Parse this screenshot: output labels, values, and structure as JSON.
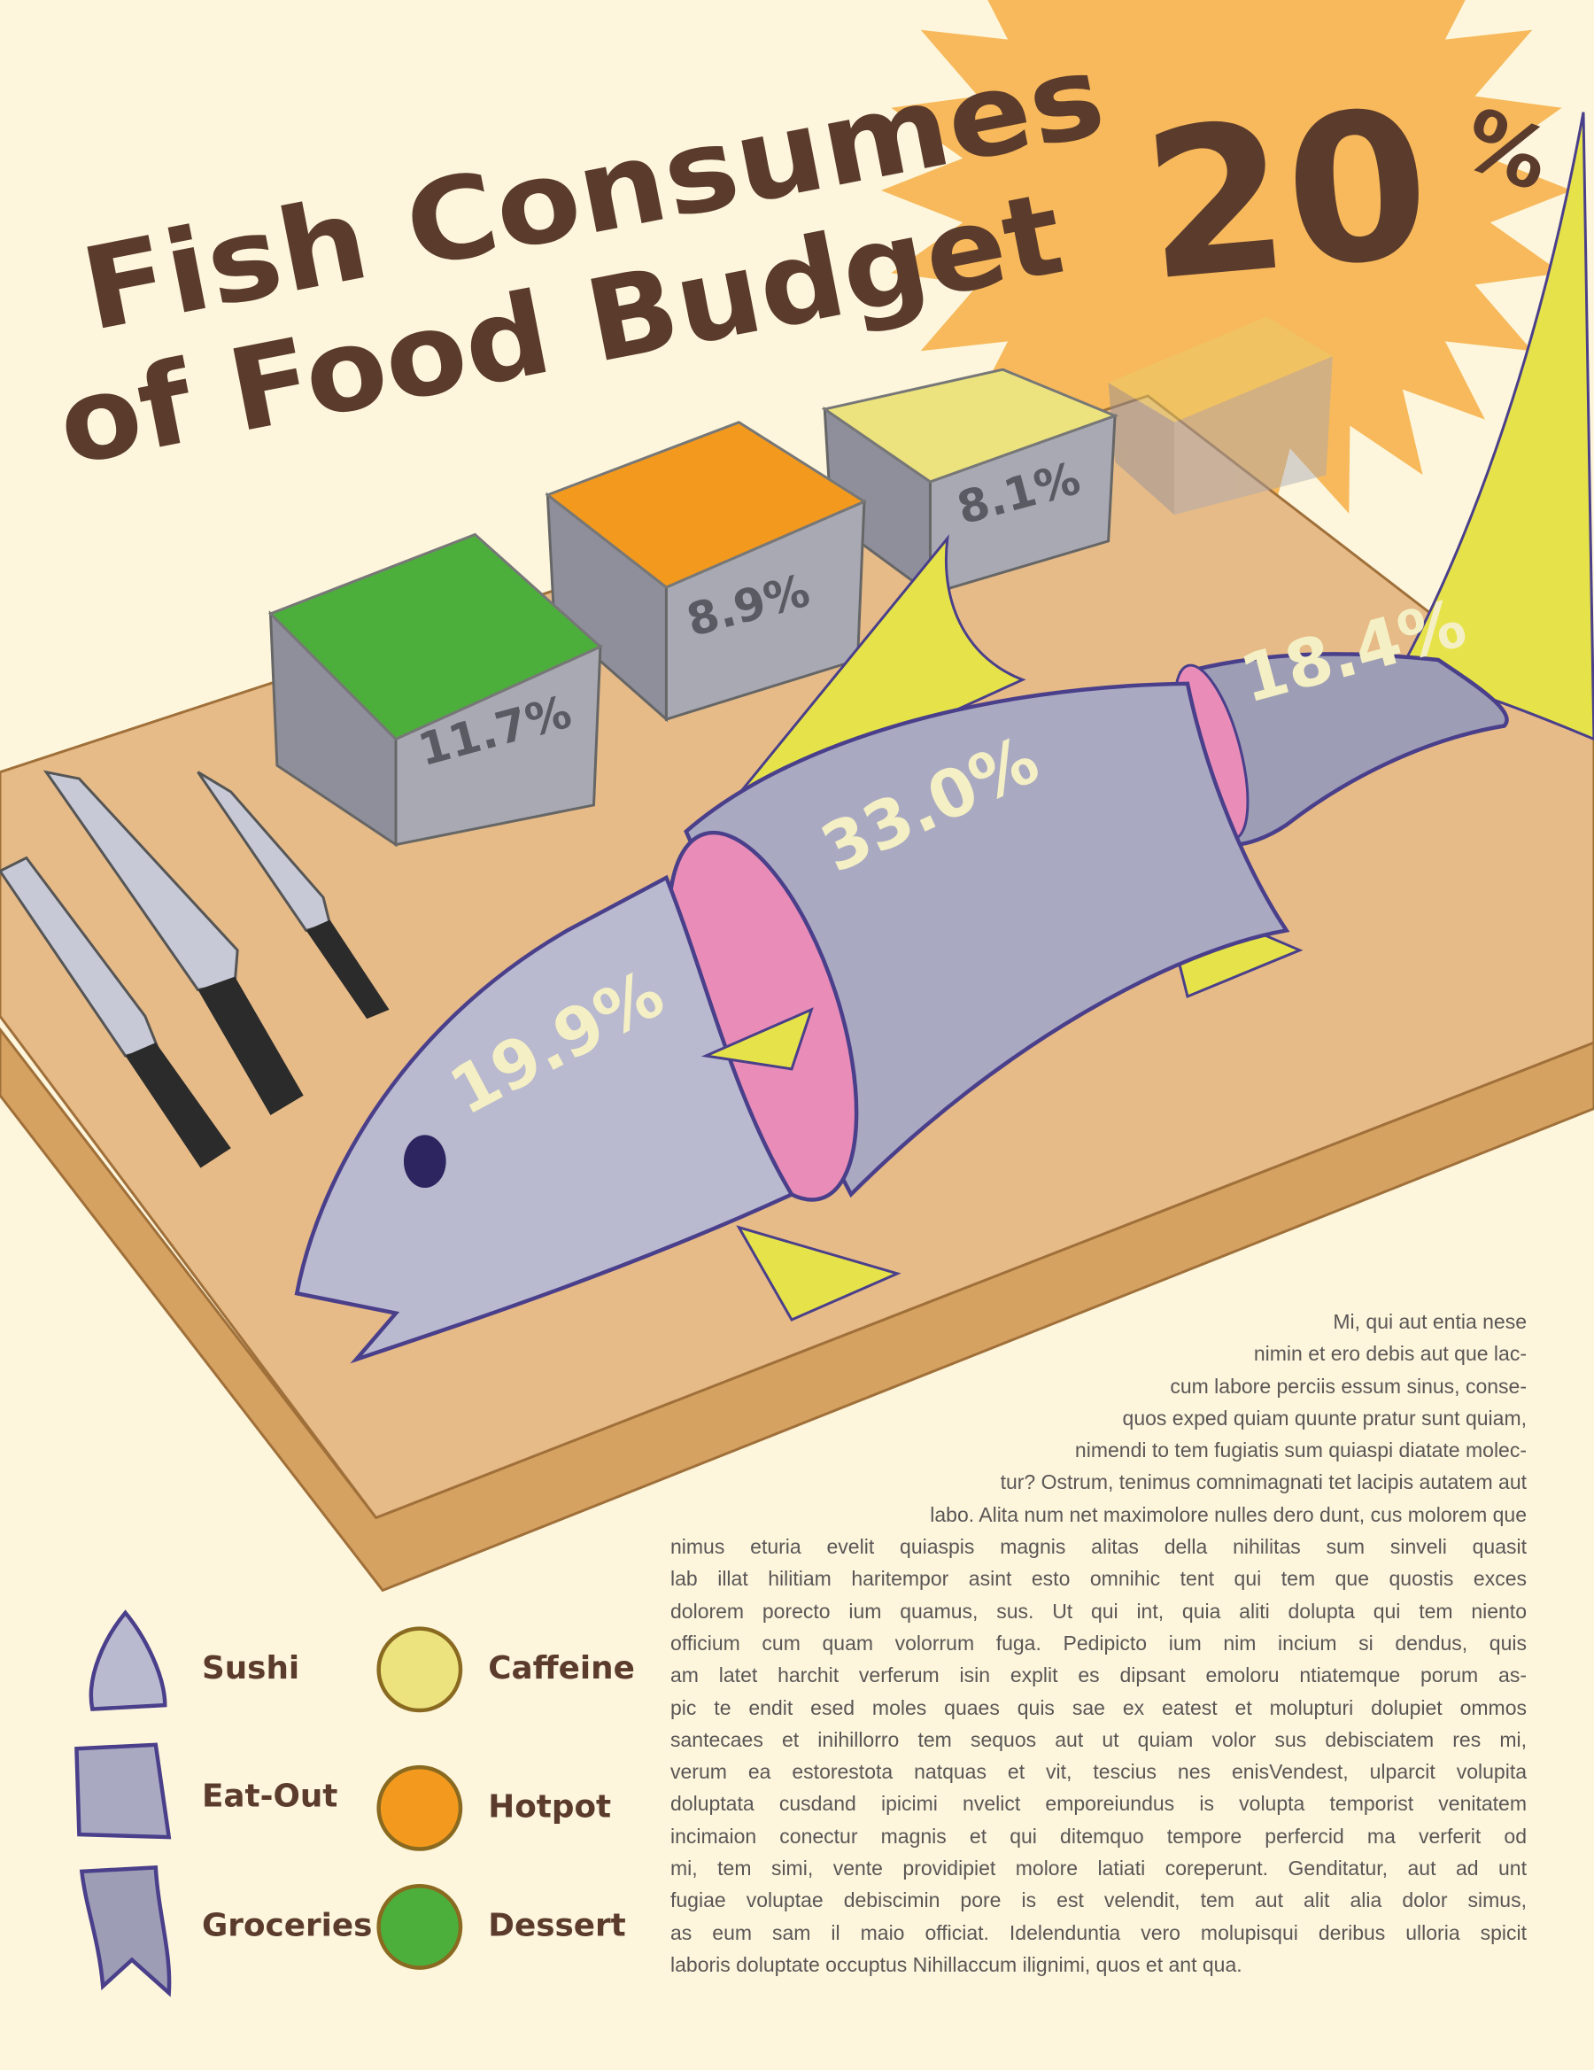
{
  "chart_data": {
    "type": "pictorial",
    "title_lines": [
      "Fish Consumes",
      "of Food Budget"
    ],
    "headline": 20,
    "headline_unit": "%",
    "categories": [
      "Sushi",
      "Eat-Out",
      "Groceries",
      "Caffeine",
      "Hotpot",
      "Dessert"
    ],
    "values": [
      19.9,
      33.0,
      18.4,
      8.1,
      8.9,
      11.7
    ],
    "value_labels": [
      "19.9%",
      "33.0%",
      "18.4%",
      "8.1%",
      "8.9%",
      "11.7%"
    ],
    "colors": [
      "#b9b9cf",
      "#a9a9c2",
      "#9d9db6",
      "#ece37e",
      "#f39a1e",
      "#4caf3c"
    ]
  },
  "body": [
    "Mi, qui aut entia nese",
    "nimin et ero debis aut que lac-",
    "cum labore perciis essum sinus, conse-",
    "quos exped quiam quunte pratur sunt quiam,",
    "nimendi to tem fugiatis sum quiaspi diatate molec-",
    "tur? Ostrum, tenimus comnimagnati tet lacipis autatem aut",
    "labo. Alita num net maximolore nulles dero dunt, cus molorem que",
    "nimus eturia evelit quiaspis magnis alitas della nihilitas sum sinveli quasit",
    "lab illat hilitiam haritempor asint esto omnihic tent qui tem que quostis exces",
    "dolorem porecto ium quamus, sus. Ut qui int, quia aliti dolupta qui tem niento",
    "officium cum quam volorrum fuga. Pedipicto ium nim incium si dendus, quis",
    "am latet harchit verferum isin explit es dipsant emoloru ntiatemque porum as-",
    "pic te endit esed moles quaes quis sae ex eatest et molupturi dolupiet ommos",
    "santecaes et inihillorro tem sequos aut ut quiam volor sus debisciatem res mi,",
    "verum ea estorestota natquas et vit, tescius nes enisVendest, ulparcit volupita",
    "doluptata cusdand ipicimi nvelict emporeiundus is volupta temporist venitatem",
    "incimaion conectur magnis et qui ditemquo tempore perfercid ma verferit od",
    "mi, tem simi, vente providipiet molore latiati coreperunt. Genditatur, aut ad unt",
    "fugiae voluptae debiscimin pore is est velendit, tem aut alit alia dolor simus,",
    "as eum sam il maio officiat. Idelenduntia vero molupisqui deribus ulloria spicit",
    "laboris doluptate occuptus Nihillaccum ilignimi, quos et ant qua."
  ]
}
